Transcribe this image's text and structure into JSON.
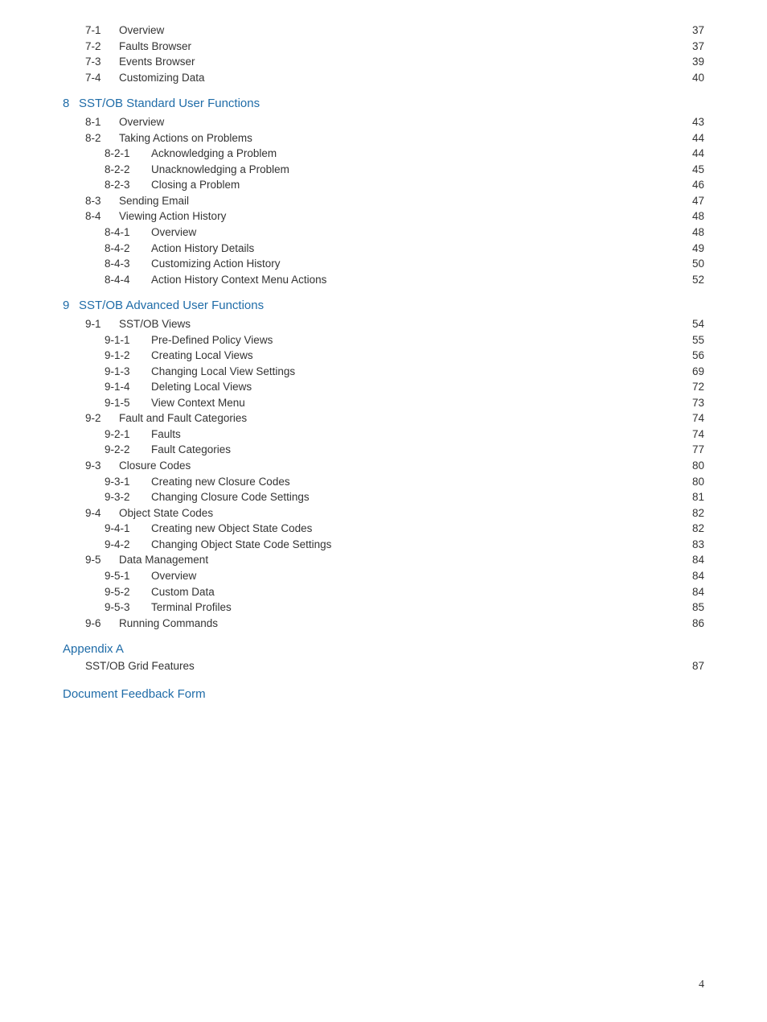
{
  "colors": {
    "section_title": "#1f6ca8",
    "body_text": "#333333",
    "background": "#ffffff"
  },
  "typography": {
    "body_font": "Century Gothic",
    "body_size_pt": 10.5,
    "title_size_pt": 11.5,
    "page_number_font": "Georgia",
    "page_number_size_pt": 10.5
  },
  "pre_sections": [
    {
      "num": "7-1",
      "title": "Overview",
      "page": "37"
    },
    {
      "num": "7-2",
      "title": "Faults Browser",
      "page": "37"
    },
    {
      "num": "7-3",
      "title": "Events Browser",
      "page": "39"
    },
    {
      "num": "7-4",
      "title": "Customizing Data",
      "page": "40"
    }
  ],
  "chapters": [
    {
      "num": "8",
      "title": "SST/OB Standard User Functions",
      "items": [
        {
          "level": 1,
          "num": "8-1",
          "title": "Overview",
          "page": "43"
        },
        {
          "level": 1,
          "num": "8-2",
          "title": "Taking Actions on Problems",
          "page": "44"
        },
        {
          "level": 2,
          "num": "8-2-1",
          "title": "Acknowledging a Problem",
          "page": "44"
        },
        {
          "level": 2,
          "num": "8-2-2",
          "title": "Unacknowledging a Problem",
          "page": "45"
        },
        {
          "level": 2,
          "num": "8-2-3",
          "title": "Closing a Problem",
          "page": "46"
        },
        {
          "level": 1,
          "num": "8-3",
          "title": "Sending Email",
          "page": "47"
        },
        {
          "level": 1,
          "num": "8-4",
          "title": "Viewing Action History",
          "page": "48"
        },
        {
          "level": 2,
          "num": "8-4-1",
          "title": "Overview",
          "page": "48"
        },
        {
          "level": 2,
          "num": "8-4-2",
          "title": "Action History Details",
          "page": "49"
        },
        {
          "level": 2,
          "num": "8-4-3",
          "title": "Customizing Action History",
          "page": "50"
        },
        {
          "level": 2,
          "num": "8-4-4",
          "title": "Action History Context Menu Actions",
          "page": "52"
        }
      ]
    },
    {
      "num": "9",
      "title": "SST/OB Advanced User Functions",
      "items": [
        {
          "level": 1,
          "num": "9-1",
          "title": "SST/OB Views",
          "page": "54"
        },
        {
          "level": 2,
          "num": "9-1-1",
          "title": "Pre-Defined Policy Views",
          "page": "55"
        },
        {
          "level": 2,
          "num": "9-1-2",
          "title": "Creating Local Views",
          "page": "56"
        },
        {
          "level": 2,
          "num": "9-1-3",
          "title": "Changing Local View Settings",
          "page": "69"
        },
        {
          "level": 2,
          "num": "9-1-4",
          "title": "Deleting Local Views",
          "page": "72"
        },
        {
          "level": 2,
          "num": "9-1-5",
          "title": "View Context Menu",
          "page": "73"
        },
        {
          "level": 1,
          "num": "9-2",
          "title": "Fault and Fault Categories",
          "page": "74"
        },
        {
          "level": 2,
          "num": "9-2-1",
          "title": "Faults",
          "page": "74"
        },
        {
          "level": 2,
          "num": "9-2-2",
          "title": "Fault Categories",
          "page": "77"
        },
        {
          "level": 1,
          "num": "9-3",
          "title": "Closure Codes",
          "page": "80"
        },
        {
          "level": 2,
          "num": "9-3-1",
          "title": "Creating new Closure Codes",
          "page": "80"
        },
        {
          "level": 2,
          "num": "9-3-2",
          "title": "Changing Closure Code Settings",
          "page": "81"
        },
        {
          "level": 1,
          "num": "9-4",
          "title": "Object State Codes",
          "page": "82"
        },
        {
          "level": 2,
          "num": "9-4-1",
          "title": "Creating new Object State Codes",
          "page": "82"
        },
        {
          "level": 2,
          "num": "9-4-2",
          "title": "Changing Object State Code Settings",
          "page": "83"
        },
        {
          "level": 1,
          "num": "9-5",
          "title": "Data Management",
          "page": "84"
        },
        {
          "level": 2,
          "num": "9-5-1",
          "title": "Overview",
          "page": "84"
        },
        {
          "level": 2,
          "num": "9-5-2",
          "title": "Custom Data",
          "page": "84"
        },
        {
          "level": 2,
          "num": "9-5-3",
          "title": "Terminal Profiles",
          "page": "85"
        },
        {
          "level": 1,
          "num": "9-6",
          "title": "Running Commands",
          "page": "86"
        }
      ]
    }
  ],
  "appendix": {
    "title": "Appendix A",
    "sub": {
      "title": "SST/OB Grid Features",
      "page": "87"
    }
  },
  "feedback_title": "Document Feedback Form",
  "page_number": "4"
}
